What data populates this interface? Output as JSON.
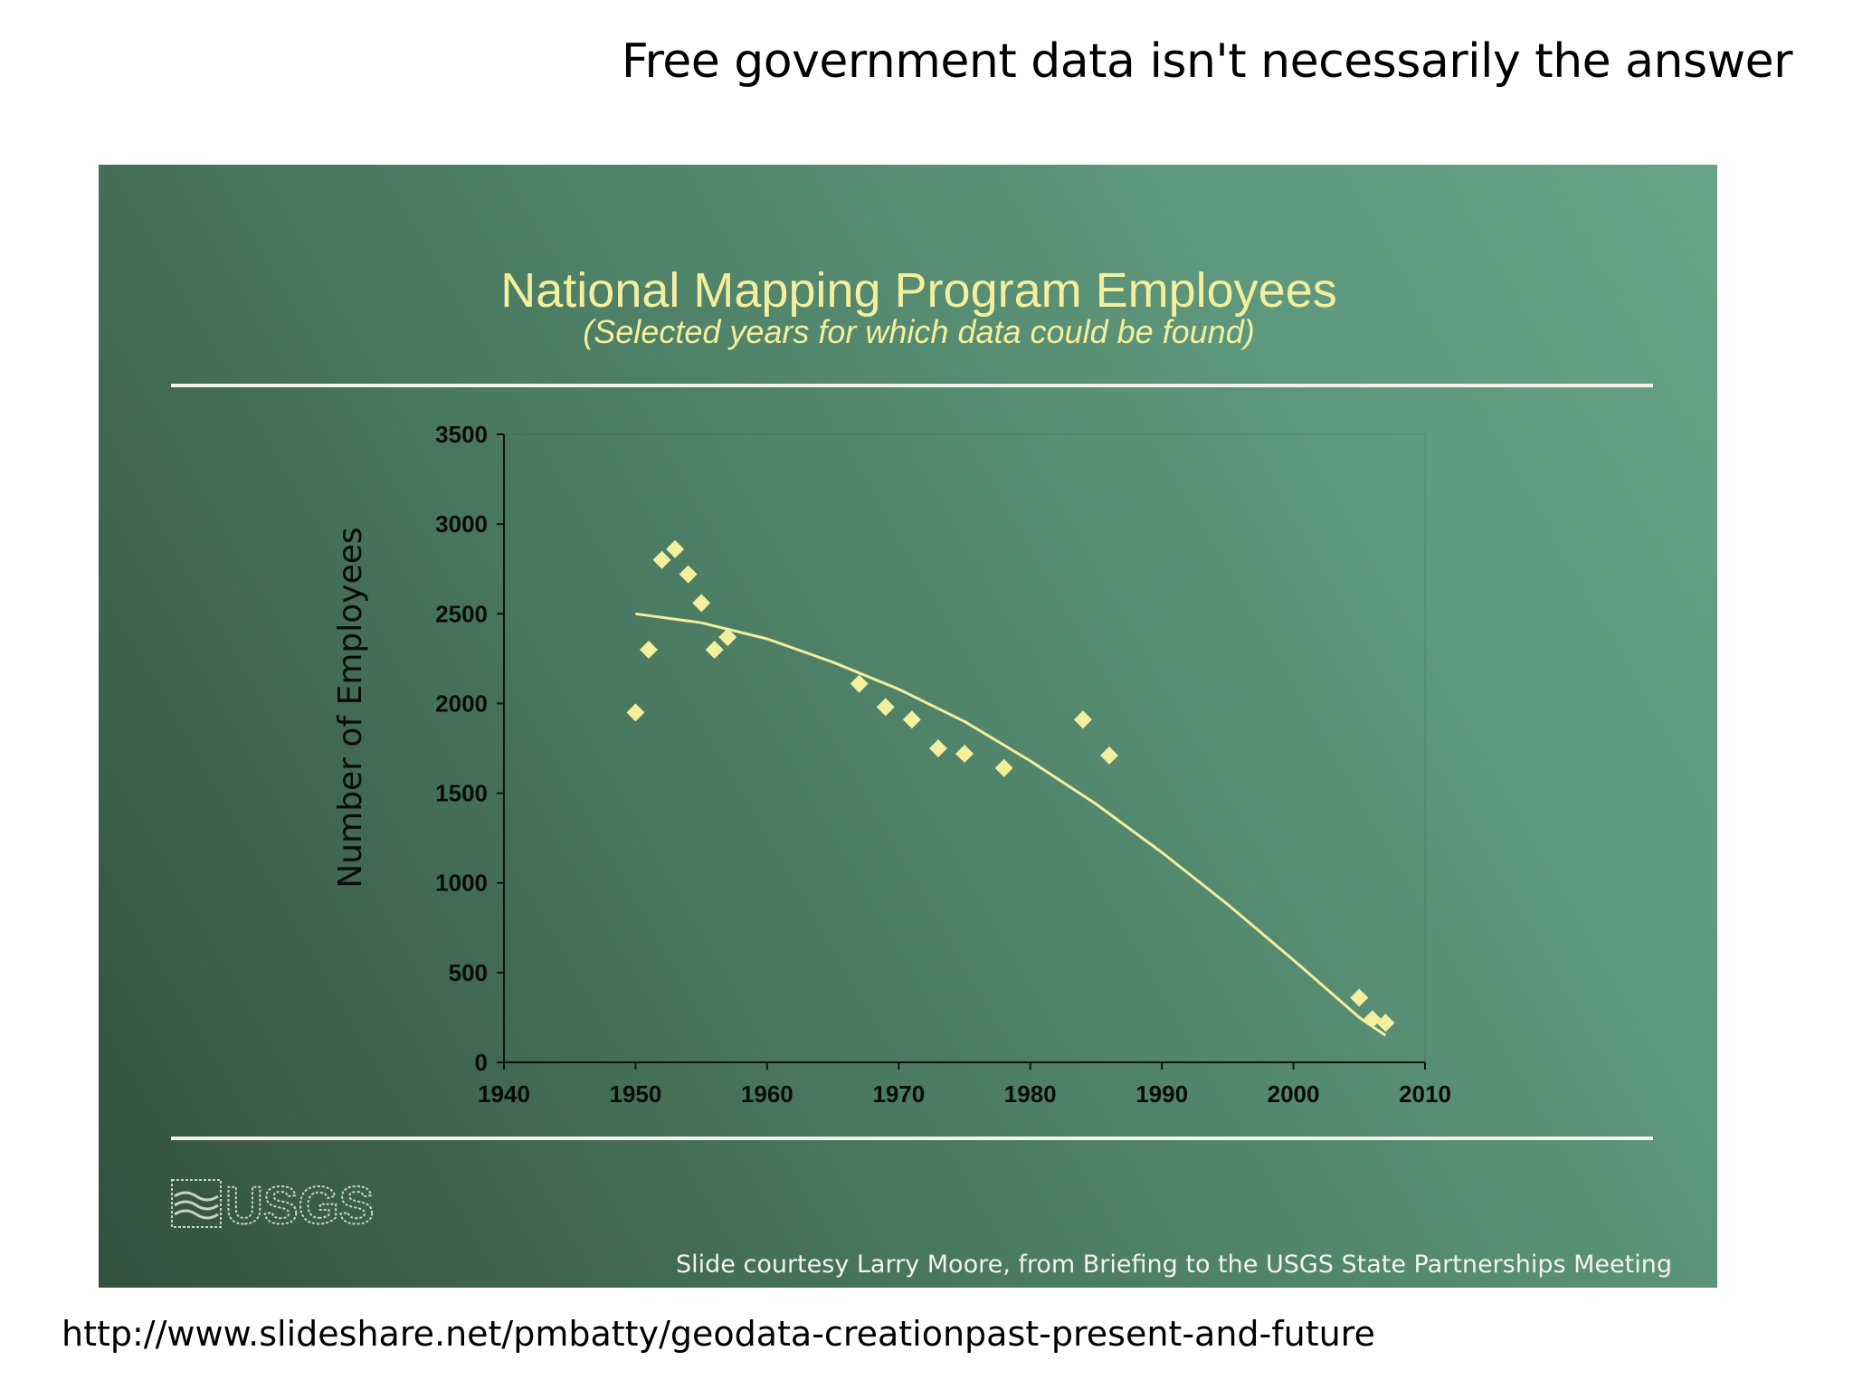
{
  "page": {
    "heading": "Free government data isn't necessarily the answer",
    "source_url": "http://www.slideshare.net/pmbatty/geodata-creationpast-present-and-future"
  },
  "slide": {
    "title": "National Mapping Program Employees",
    "subtitle": "(Selected years for which data could be found)",
    "credit": "Slide courtesy Larry Moore, from Briefing to the USGS State Partnerships Meeting",
    "logo_text": "USGS",
    "colors": {
      "accent": "#f4ef9c",
      "rule": "#f3f3ea",
      "axis_text": "#0b0b0b"
    }
  },
  "chart_data": {
    "type": "scatter",
    "title": "National Mapping Program Employees",
    "subtitle": "(Selected years for which data could be found)",
    "xlabel": "",
    "ylabel": "Number of Employees",
    "xlim": [
      1940,
      2010
    ],
    "ylim": [
      0,
      3500
    ],
    "xticks": [
      1940,
      1950,
      1960,
      1970,
      1980,
      1990,
      2000,
      2010
    ],
    "yticks": [
      0,
      500,
      1000,
      1500,
      2000,
      2500,
      3000,
      3500
    ],
    "grid": false,
    "series": [
      {
        "name": "Employees",
        "marker": "diamond",
        "points": [
          {
            "x": 1950,
            "y": 1950
          },
          {
            "x": 1951,
            "y": 2300
          },
          {
            "x": 1952,
            "y": 2800
          },
          {
            "x": 1953,
            "y": 2860
          },
          {
            "x": 1954,
            "y": 2720
          },
          {
            "x": 1955,
            "y": 2560
          },
          {
            "x": 1956,
            "y": 2300
          },
          {
            "x": 1957,
            "y": 2370
          },
          {
            "x": 1967,
            "y": 2110
          },
          {
            "x": 1969,
            "y": 1980
          },
          {
            "x": 1971,
            "y": 1910
          },
          {
            "x": 1973,
            "y": 1750
          },
          {
            "x": 1975,
            "y": 1720
          },
          {
            "x": 1978,
            "y": 1640
          },
          {
            "x": 1984,
            "y": 1910
          },
          {
            "x": 1986,
            "y": 1710
          },
          {
            "x": 2005,
            "y": 360
          },
          {
            "x": 2006,
            "y": 240
          },
          {
            "x": 2007,
            "y": 220
          }
        ]
      }
    ],
    "trendline": {
      "type": "polynomial",
      "x": [
        1950,
        1955,
        1960,
        1965,
        1970,
        1975,
        1980,
        1985,
        1990,
        1995,
        2000,
        2005,
        2007
      ],
      "y": [
        2500,
        2450,
        2360,
        2230,
        2080,
        1900,
        1680,
        1440,
        1170,
        880,
        570,
        250,
        150
      ]
    }
  }
}
